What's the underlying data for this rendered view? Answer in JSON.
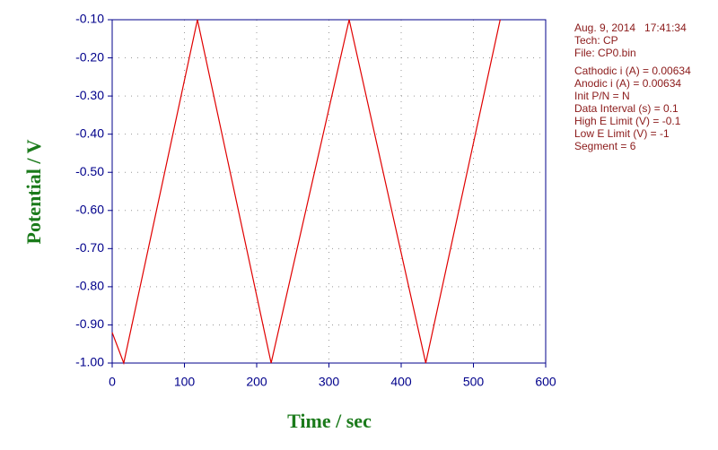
{
  "chart_data": {
    "type": "line",
    "x_label": "Time / sec",
    "y_label": "Potential / V",
    "x": [
      0,
      16,
      118,
      220,
      328,
      434,
      537
    ],
    "series": [
      {
        "color": "#e00000",
        "values": [
          -0.92,
          -1.0,
          -0.1,
          -1.0,
          -0.1,
          -1.0,
          -0.1
        ]
      }
    ],
    "xlim": [
      0,
      600
    ],
    "xticks": [
      0,
      100,
      200,
      300,
      400,
      500,
      600
    ],
    "ylim": [
      -1.0,
      -0.1
    ],
    "yticks": [
      {
        "value": -0.1,
        "label": "-0.10"
      },
      {
        "value": -0.2,
        "label": "-0.20"
      },
      {
        "value": -0.3,
        "label": "-0.30"
      },
      {
        "value": -0.4,
        "label": "-0.40"
      },
      {
        "value": -0.5,
        "label": "-0.50"
      },
      {
        "value": -0.6,
        "label": "-0.60"
      },
      {
        "value": -0.7,
        "label": "-0.70"
      },
      {
        "value": -0.8,
        "label": "-0.80"
      },
      {
        "value": -0.9,
        "label": "-0.90"
      },
      {
        "value": -1.0,
        "label": "-1.00"
      }
    ],
    "grid": true,
    "info_header": [
      "Aug. 9, 2014   17:41:34",
      "Tech: CP",
      "File: CP0.bin"
    ],
    "info_params": [
      "Cathodic i (A) = 0.00634",
      "Anodic i (A) = 0.00634",
      "Init P/N = N",
      "Data Interval (s) = 0.1",
      "High E Limit (V) = -0.1",
      "Low E Limit (V) = -1",
      "Segment = 6"
    ]
  }
}
